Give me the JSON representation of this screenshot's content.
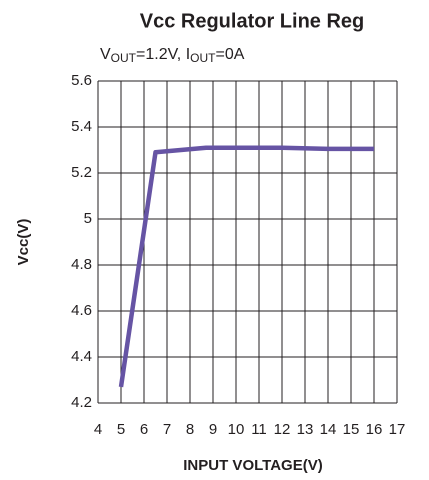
{
  "chart_data": {
    "type": "line",
    "title": "Vcc Regulator Line Reg",
    "subtitle_parts": [
      "V",
      "OUT",
      "=1.2V, I",
      "OUT",
      "=0A"
    ],
    "x_label": "INPUT VOLTAGE(V)",
    "y_label": "Vcc(V)",
    "x": [
      5,
      6.5,
      8.7,
      10,
      12,
      14,
      16
    ],
    "series": [
      {
        "name": "Vcc",
        "color": "#6654a4",
        "values": [
          4.27,
          5.29,
          5.31,
          5.31,
          5.31,
          5.305,
          5.305
        ]
      }
    ],
    "xlim": [
      4,
      17
    ],
    "xticks": [
      4,
      5,
      6,
      7,
      8,
      9,
      10,
      11,
      12,
      13,
      14,
      15,
      16,
      17
    ],
    "ylim": [
      4.2,
      5.6
    ],
    "yticks": [
      4.2,
      4.4,
      4.6,
      4.8,
      5,
      5.2,
      5.4,
      5.6
    ],
    "grid": true
  }
}
